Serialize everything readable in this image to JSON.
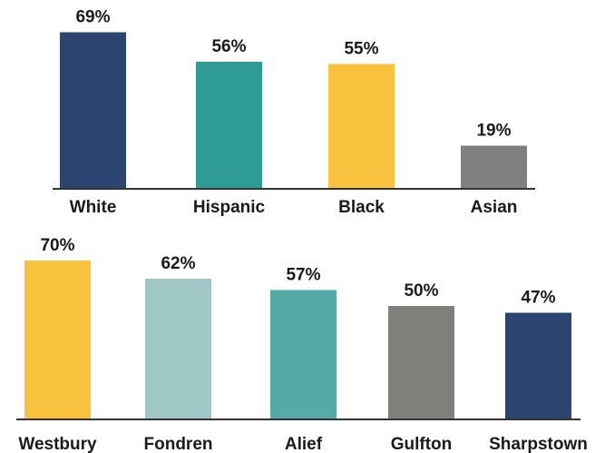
{
  "chart_data": [
    {
      "type": "bar",
      "categories": [
        "White",
        "Hispanic",
        "Black",
        "Asian"
      ],
      "values": [
        69,
        56,
        55,
        19
      ],
      "value_labels": [
        "69%",
        "56%",
        "55%",
        "19%"
      ],
      "colors": [
        "#2b4470",
        "#2e9c95",
        "#f8c13e",
        "#808080"
      ]
    },
    {
      "type": "bar",
      "categories": [
        "Westbury",
        "Fondren",
        "Alief",
        "Gulfton",
        "Sharpstown"
      ],
      "values": [
        70,
        62,
        57,
        50,
        47
      ],
      "value_labels": [
        "70%",
        "62%",
        "57%",
        "50%",
        "47%"
      ],
      "colors": [
        "#f8c13e",
        "#9fc7c5",
        "#55aaa8",
        "#7f807c",
        "#2b4470"
      ]
    }
  ]
}
